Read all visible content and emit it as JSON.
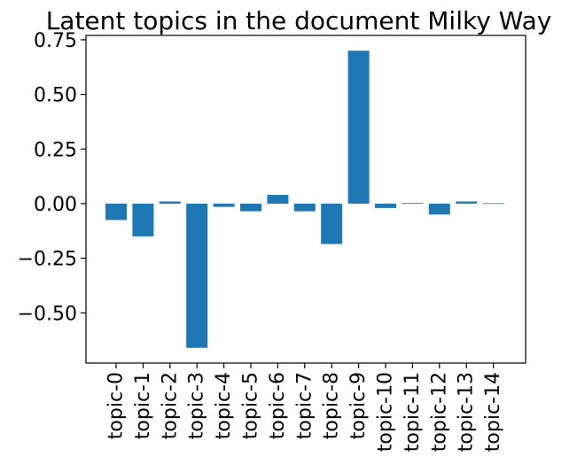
{
  "chart_data": {
    "type": "bar",
    "title": "Latent topics in the document Milky Way",
    "xlabel": "",
    "ylabel": "",
    "categories": [
      "topic-0",
      "topic-1",
      "topic-2",
      "topic-3",
      "topic-4",
      "topic-5",
      "topic-6",
      "topic-7",
      "topic-8",
      "topic-9",
      "topic-10",
      "topic-11",
      "topic-12",
      "topic-13",
      "topic-14"
    ],
    "values": [
      -0.075,
      -0.15,
      0.01,
      -0.66,
      -0.015,
      -0.035,
      0.04,
      -0.035,
      -0.185,
      0.7,
      -0.02,
      0.003,
      -0.05,
      0.01,
      0.002
    ],
    "yticks": [
      -0.5,
      -0.25,
      0.0,
      0.25,
      0.5,
      0.75
    ],
    "ytick_labels": [
      "−0.50",
      "−0.25",
      "0.00",
      "0.25",
      "0.50",
      "0.75"
    ],
    "ylim": [
      -0.73,
      0.77
    ],
    "grid": false,
    "bar_color": "#1f77b4"
  }
}
